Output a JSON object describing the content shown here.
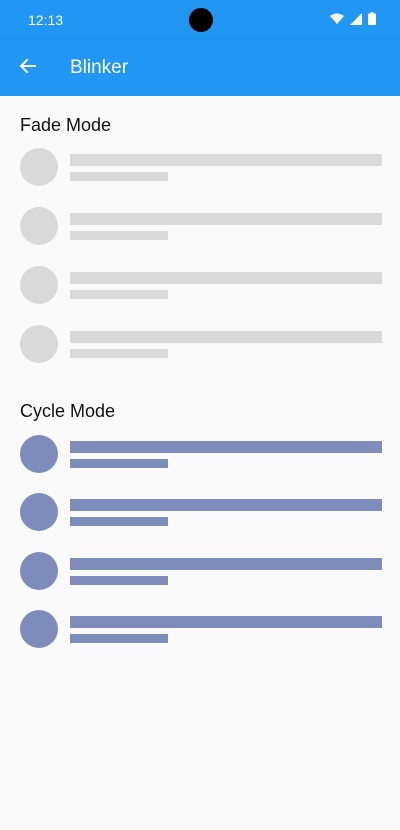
{
  "status_bar": {
    "time": "12:13",
    "icons": [
      "wifi-icon",
      "signal-icon",
      "battery-icon"
    ]
  },
  "app_bar": {
    "title": "Blinker",
    "back_icon": "arrow-left-icon",
    "color": "#2196f3"
  },
  "sections": {
    "fade": {
      "title": "Fade Mode",
      "placeholder_color": "#d9d9d9"
    },
    "cycle": {
      "title": "Cycle Mode",
      "placeholder_color": "#7d8cbb"
    }
  }
}
